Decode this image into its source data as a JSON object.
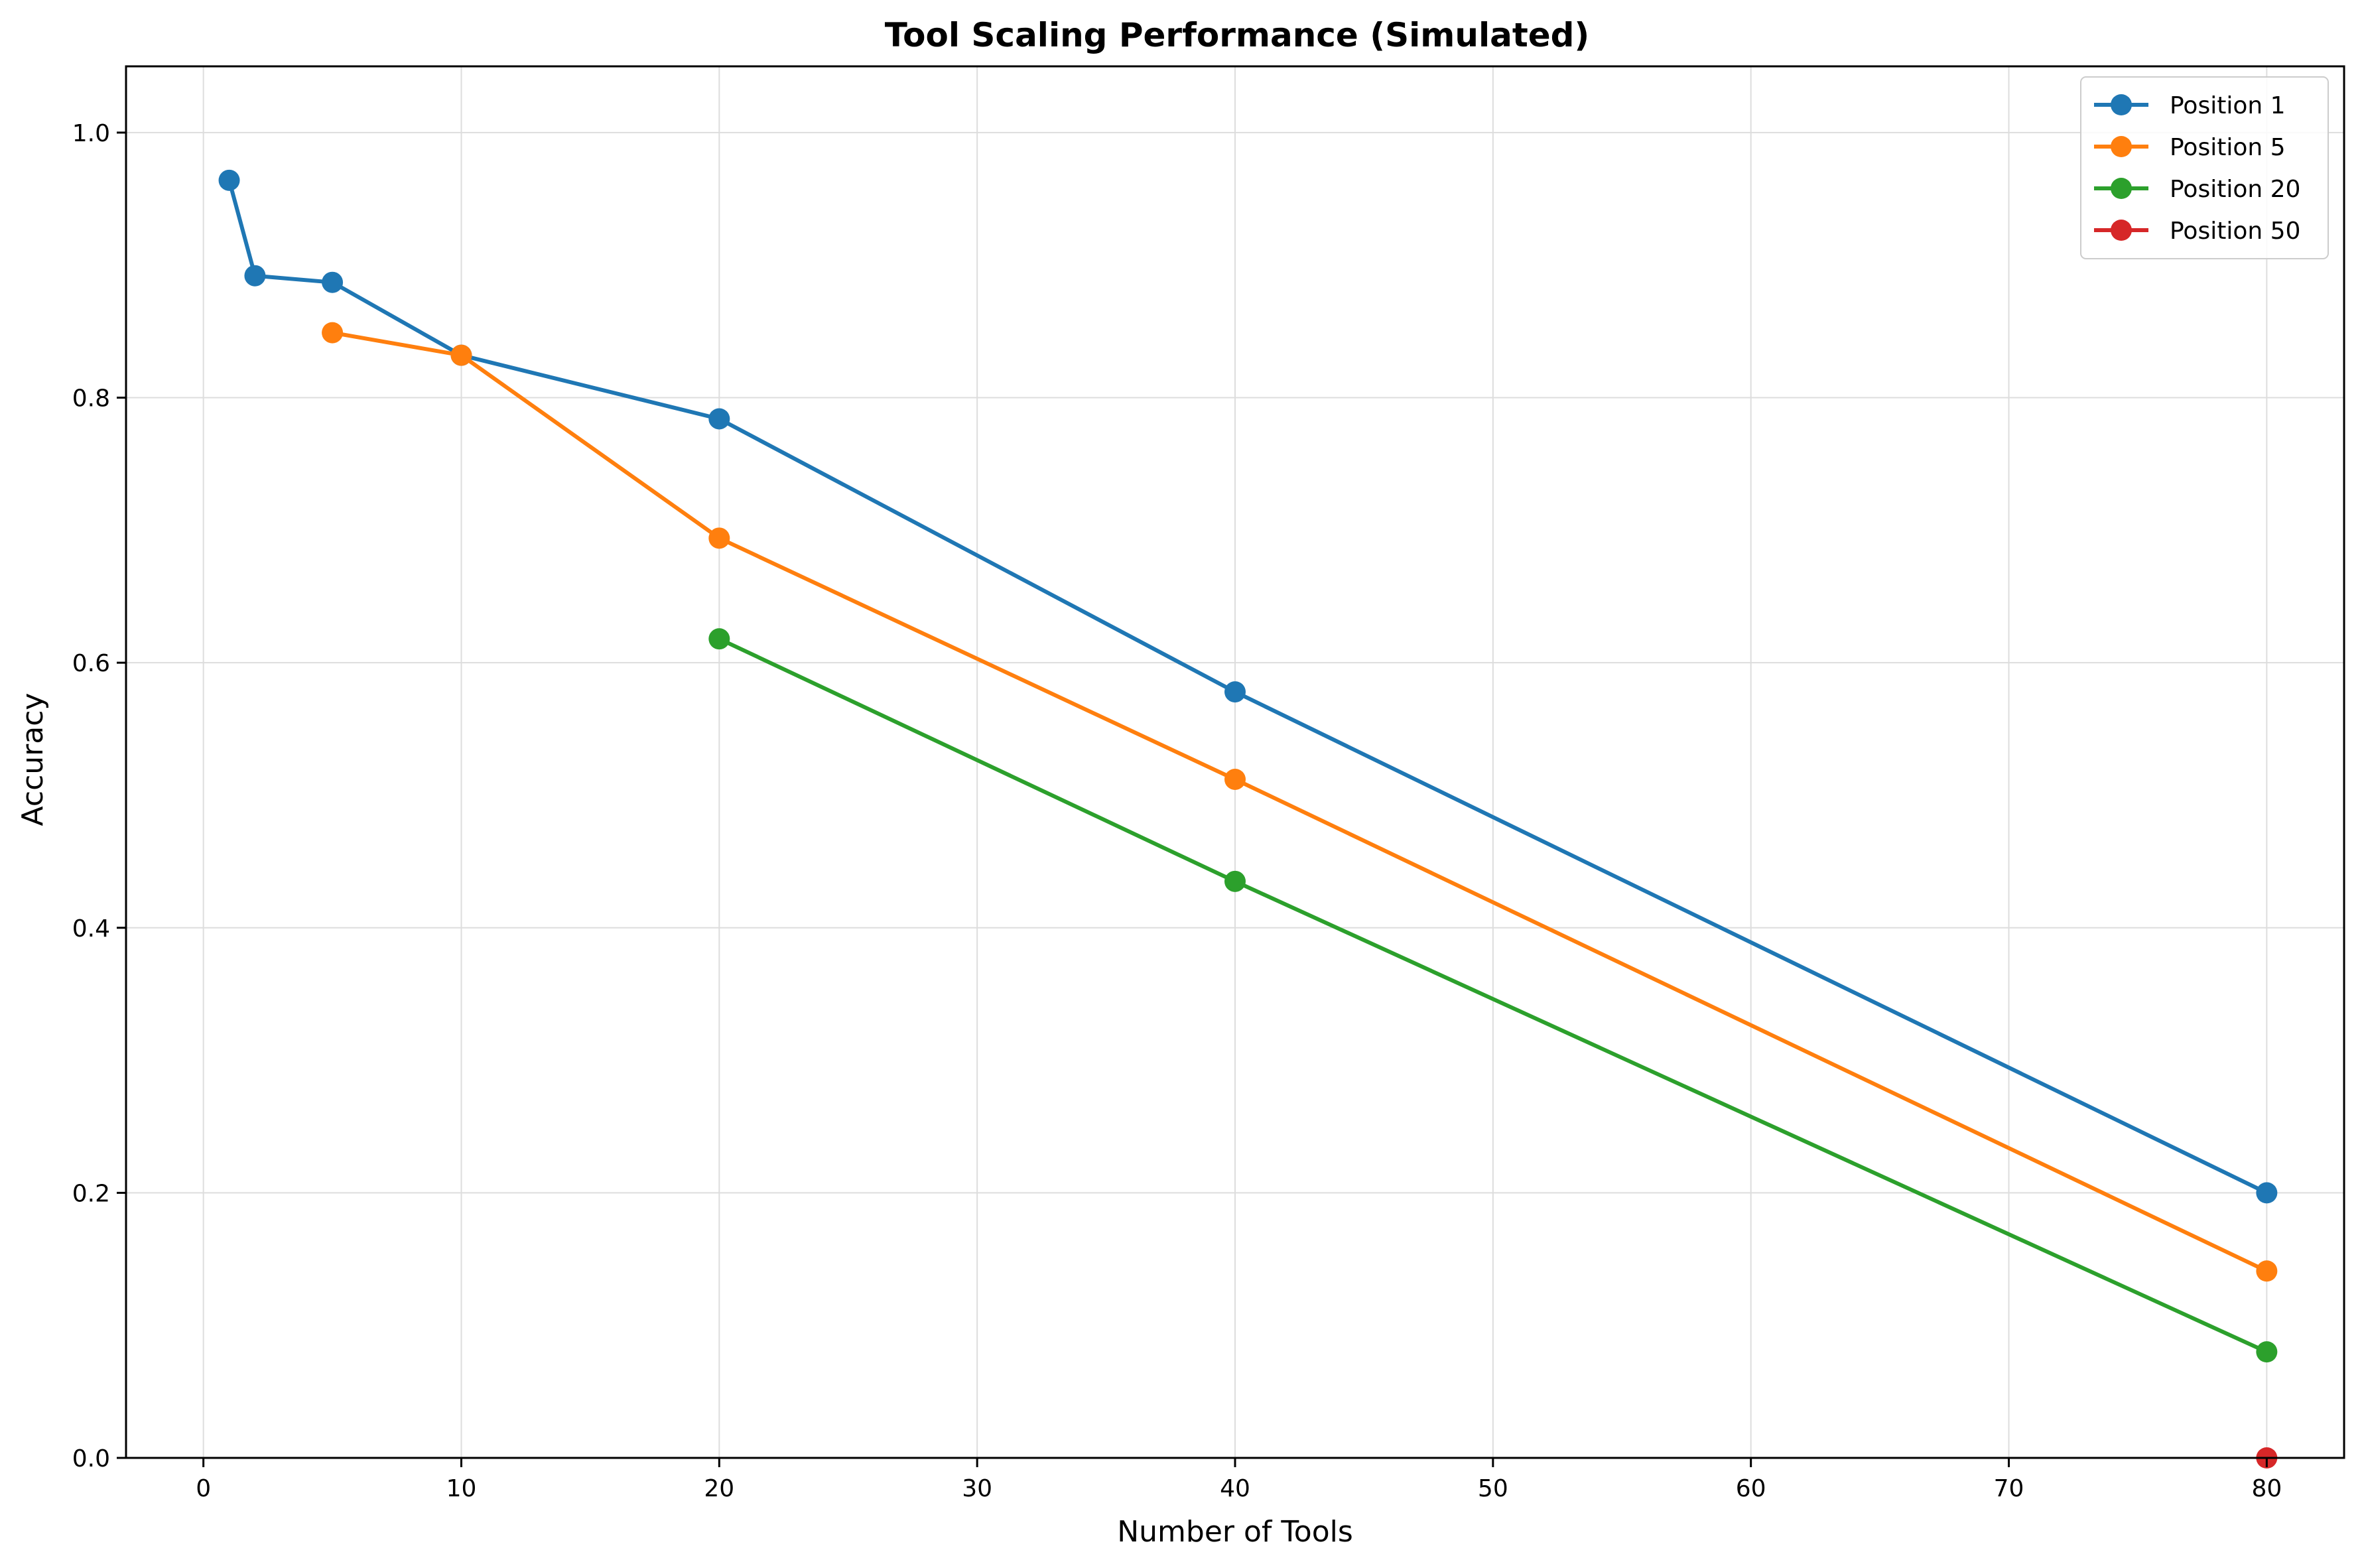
{
  "chart_data": {
    "type": "line",
    "title": "Tool Scaling Performance (Simulated)",
    "xlabel": "Number of Tools",
    "ylabel": "Accuracy",
    "xlim": [
      -3,
      83
    ],
    "ylim": [
      0,
      1.05
    ],
    "x_ticks": [
      0,
      10,
      20,
      30,
      40,
      50,
      60,
      70,
      80
    ],
    "y_ticks": [
      0.0,
      0.2,
      0.4,
      0.6,
      0.8,
      1.0
    ],
    "x_tick_labels": [
      "0",
      "10",
      "20",
      "30",
      "40",
      "50",
      "60",
      "70",
      "80"
    ],
    "y_tick_labels": [
      "0.0",
      "0.2",
      "0.4",
      "0.6",
      "0.8",
      "1.0"
    ],
    "grid": true,
    "legend_position": "top-right",
    "series": [
      {
        "name": "Position 1",
        "color": "#1f77b4",
        "x": [
          1,
          2,
          5,
          10,
          20,
          40,
          80
        ],
        "y": [
          0.964,
          0.892,
          0.887,
          0.832,
          0.784,
          0.578,
          0.2
        ]
      },
      {
        "name": "Position 5",
        "color": "#ff7f0e",
        "x": [
          5,
          10,
          20,
          40,
          80
        ],
        "y": [
          0.849,
          0.832,
          0.694,
          0.512,
          0.141
        ]
      },
      {
        "name": "Position 20",
        "color": "#2ca02c",
        "x": [
          20,
          40,
          80
        ],
        "y": [
          0.618,
          0.435,
          0.08
        ]
      },
      {
        "name": "Position 50",
        "color": "#d62728",
        "x": [
          80
        ],
        "y": [
          0.0
        ]
      }
    ]
  }
}
